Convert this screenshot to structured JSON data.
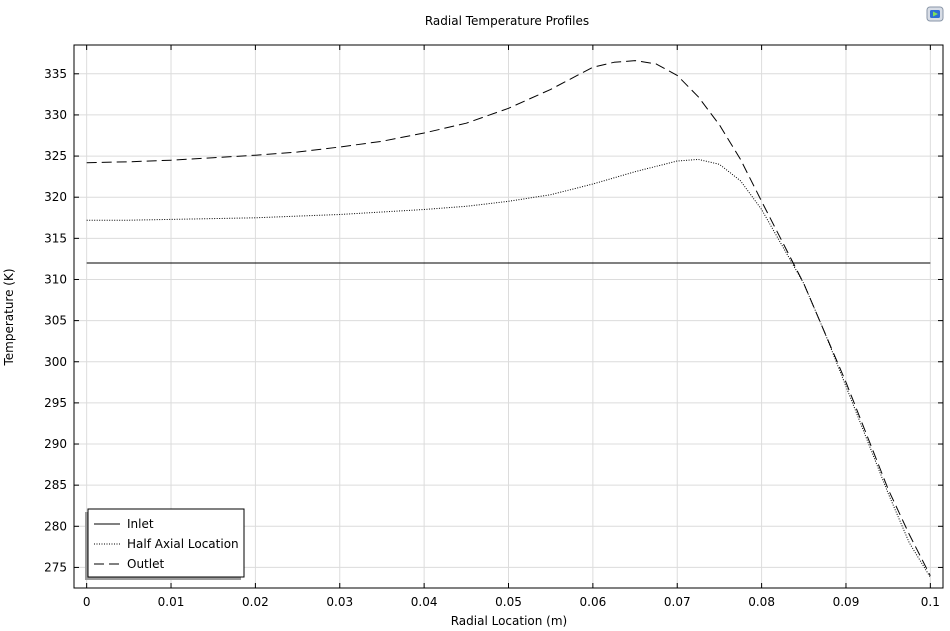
{
  "icons": {
    "export": "export-image-icon"
  },
  "chart_data": {
    "type": "line",
    "title": "Radial Temperature Profiles",
    "xlabel": "Radial Location (m)",
    "ylabel": "Temperature (K)",
    "xlim": [
      -0.0015,
      0.1015
    ],
    "ylim": [
      272.5,
      338.5
    ],
    "xticks": [
      "0",
      "0.01",
      "0.02",
      "0.03",
      "0.04",
      "0.05",
      "0.06",
      "0.07",
      "0.08",
      "0.09",
      "0.1"
    ],
    "yticks": [
      "275",
      "280",
      "285",
      "290",
      "295",
      "300",
      "305",
      "310",
      "315",
      "320",
      "325",
      "330",
      "335"
    ],
    "grid": true,
    "legend_position": "bottom-left",
    "series": [
      {
        "name": "Inlet",
        "style": "solid",
        "x": [
          0,
          0.1
        ],
        "y": [
          312,
          312
        ]
      },
      {
        "name": "Half Axial Location",
        "style": "dotted",
        "x": [
          0,
          0.005,
          0.01,
          0.015,
          0.02,
          0.025,
          0.03,
          0.035,
          0.04,
          0.045,
          0.05,
          0.055,
          0.06,
          0.065,
          0.07,
          0.0725,
          0.075,
          0.0775,
          0.08,
          0.0825,
          0.085,
          0.0875,
          0.09,
          0.0925,
          0.095,
          0.0975,
          0.1
        ],
        "y": [
          317.2,
          317.2,
          317.3,
          317.4,
          317.5,
          317.7,
          317.9,
          318.2,
          318.5,
          318.9,
          319.5,
          320.3,
          321.6,
          323.1,
          324.4,
          324.6,
          324.0,
          322.0,
          318.5,
          314.0,
          309.5,
          303.5,
          297.0,
          290.5,
          284.0,
          278.0,
          273.8
        ]
      },
      {
        "name": "Outlet",
        "style": "dashed",
        "x": [
          0,
          0.005,
          0.01,
          0.015,
          0.02,
          0.025,
          0.03,
          0.035,
          0.04,
          0.045,
          0.05,
          0.055,
          0.06,
          0.0625,
          0.065,
          0.0675,
          0.07,
          0.0725,
          0.075,
          0.0775,
          0.08,
          0.0825,
          0.085,
          0.0875,
          0.09,
          0.0925,
          0.095,
          0.0975,
          0.1
        ],
        "y": [
          324.2,
          324.3,
          324.5,
          324.8,
          325.1,
          325.5,
          326.1,
          326.8,
          327.8,
          329.0,
          330.8,
          333.1,
          335.8,
          336.4,
          336.6,
          336.2,
          334.8,
          332.2,
          328.8,
          324.6,
          319.5,
          314.5,
          309.5,
          303.5,
          297.5,
          291.0,
          284.5,
          279.0,
          274.0
        ]
      }
    ]
  }
}
